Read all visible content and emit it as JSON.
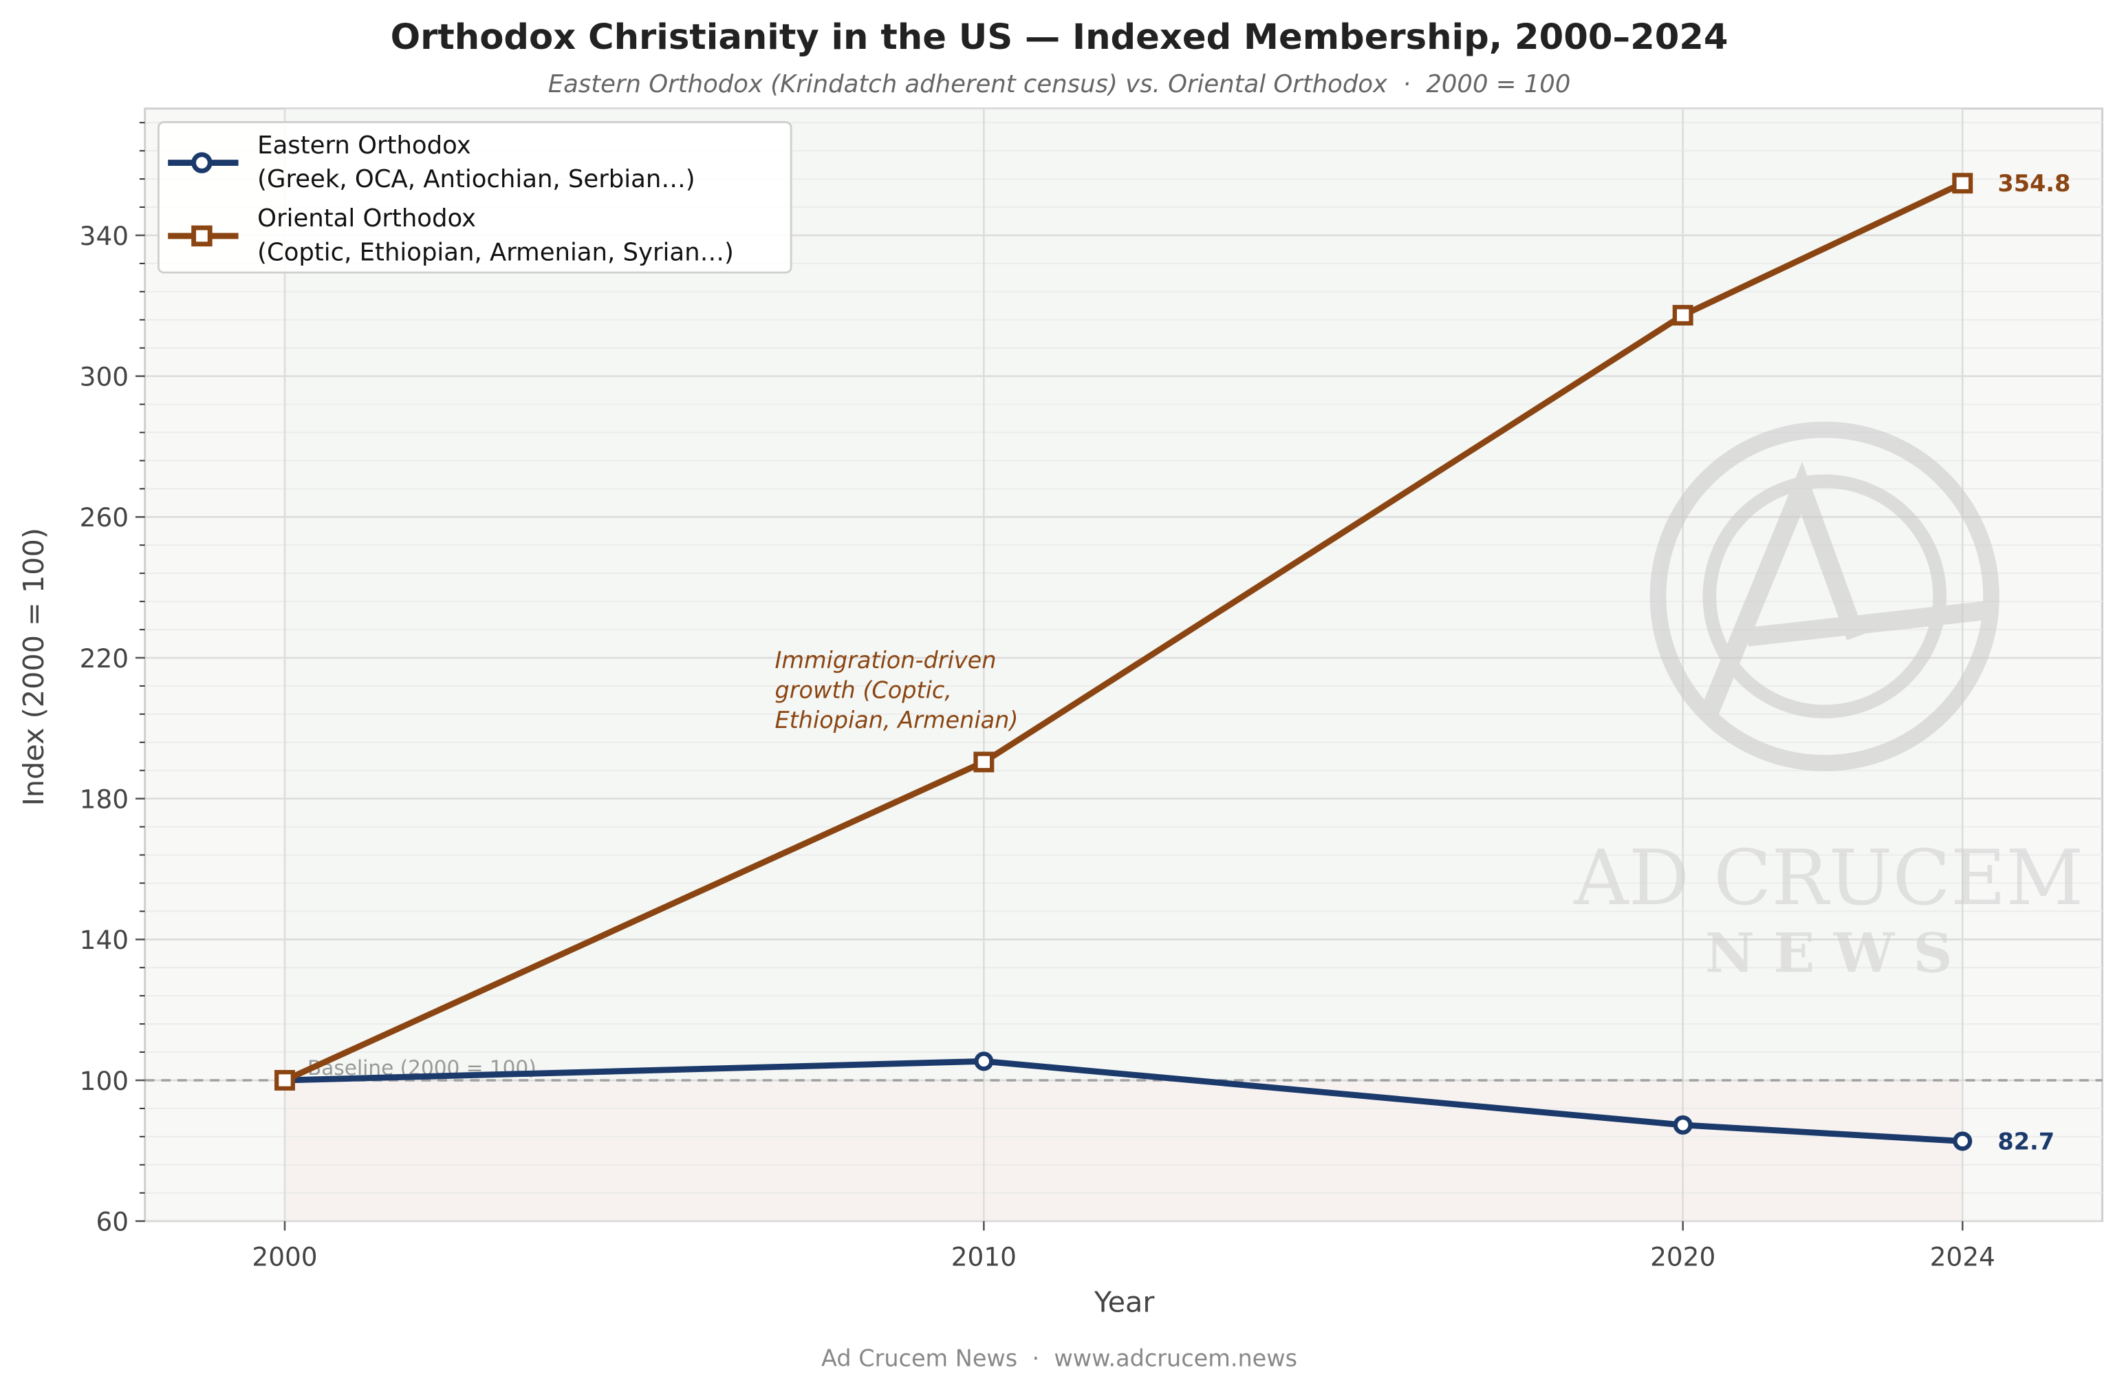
{
  "chart_data": {
    "type": "line",
    "title": "Orthodox Christianity in the US — Indexed Membership, 2000–2024",
    "subtitle": "Eastern Orthodox (Krindatch adherent census) vs. Oriental Orthodox  ·  2000 = 100",
    "xlabel": "Year",
    "ylabel": "Index (2000 = 100)",
    "xlim": [
      1998,
      2026
    ],
    "ylim": [
      60,
      376
    ],
    "x": [
      2000,
      2010,
      2020,
      2024
    ],
    "xticks": [
      "2000",
      "2010",
      "2020",
      "2024"
    ],
    "yticks": [
      "60",
      "100",
      "140",
      "180",
      "220",
      "260",
      "300",
      "340"
    ],
    "grid": true,
    "legend_position": "top-left",
    "series": [
      {
        "name": "Eastern Orthodox",
        "name_line2": "(Greek, OCA, Antiochian, Serbian…)",
        "values": [
          100,
          105.4,
          87.3,
          82.7
        ],
        "color": "#1b3a6b",
        "marker": "circle",
        "end_label": "82.7"
      },
      {
        "name": "Oriental Orthodox",
        "name_line2": "(Coptic, Ethiopian, Armenian, Syrian…)",
        "values": [
          100,
          190.4,
          317.3,
          354.8
        ],
        "color": "#8b4513",
        "marker": "square",
        "end_label": "354.8"
      }
    ],
    "baseline": {
      "value": 100,
      "label": "Baseline (2000 = 100)"
    },
    "annotation": {
      "lines": [
        "Immigration-driven",
        "growth (Coptic,",
        "Ethiopian, Armenian)"
      ],
      "x": 2010,
      "y": 205
    },
    "watermark": {
      "line1": "AD CRUCEM",
      "line2": "N E W S"
    }
  },
  "footer": "Ad Crucem News  ·  www.adcrucem.news"
}
